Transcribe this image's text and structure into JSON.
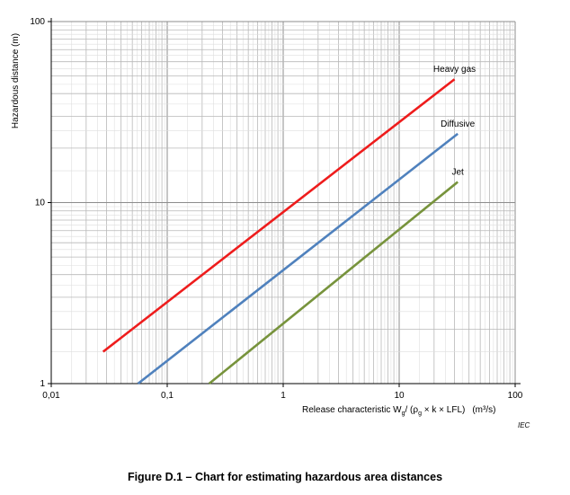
{
  "figure_caption": "Figure D.1 – Chart for estimating hazardous area distances",
  "iec_mark": "IEC",
  "chart_data": {
    "type": "line",
    "title": "",
    "xscale": "log",
    "yscale": "log",
    "xlim": [
      0.01,
      100
    ],
    "ylim": [
      1,
      100
    ],
    "grid": true,
    "legend": "none (series labeled at line ends)",
    "xlabel": {
      "main": "Release characteristic W",
      "sub_g": "g",
      "paren_open": "/ (ρ",
      "paren_rest": " × k × LFL)",
      "units": "(m³/s)"
    },
    "ylabel": "Hazardous distance  (m)",
    "xticks": [
      {
        "value": 0.01,
        "label": "0,01"
      },
      {
        "value": 0.1,
        "label": "0,1"
      },
      {
        "value": 1,
        "label": "1"
      },
      {
        "value": 10,
        "label": "10"
      },
      {
        "value": 100,
        "label": "100"
      }
    ],
    "yticks": [
      {
        "value": 1,
        "label": "1"
      },
      {
        "value": 10,
        "label": "10"
      },
      {
        "value": 100,
        "label": "100"
      }
    ],
    "series": [
      {
        "name": "Heavy gas",
        "color": "#ee1c1c",
        "x": [
          0.028,
          30
        ],
        "y": [
          1.5,
          48
        ]
      },
      {
        "name": "Diffusive",
        "color": "#4f81bd",
        "x": [
          0.056,
          32
        ],
        "y": [
          1.0,
          24
        ]
      },
      {
        "name": "Jet",
        "color": "#77933c",
        "x": [
          0.23,
          32
        ],
        "y": [
          1.0,
          13
        ]
      }
    ]
  }
}
